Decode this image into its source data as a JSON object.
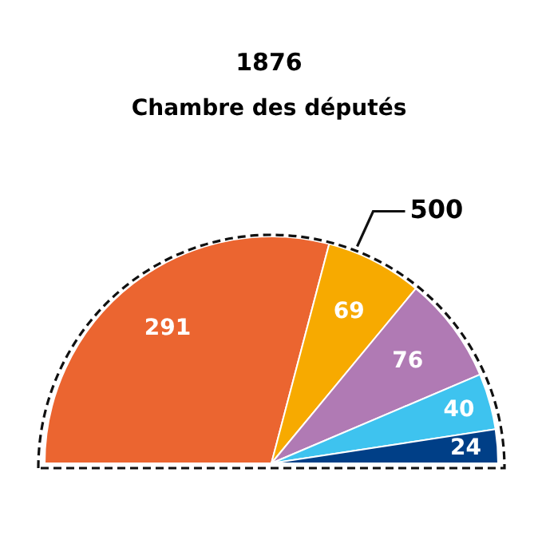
{
  "chart_data": {
    "type": "pie",
    "title": "1876",
    "subtitle": "Chambre des députés",
    "categories": [
      null,
      null,
      null,
      null,
      null
    ],
    "values": [
      291,
      69,
      76,
      40,
      24
    ],
    "colors": [
      "#eb6530",
      "#f7aa00",
      "#b07ab4",
      "#3ec3ef",
      "#003f87"
    ],
    "data_labels": true,
    "annotations": [
      "500"
    ]
  }
}
